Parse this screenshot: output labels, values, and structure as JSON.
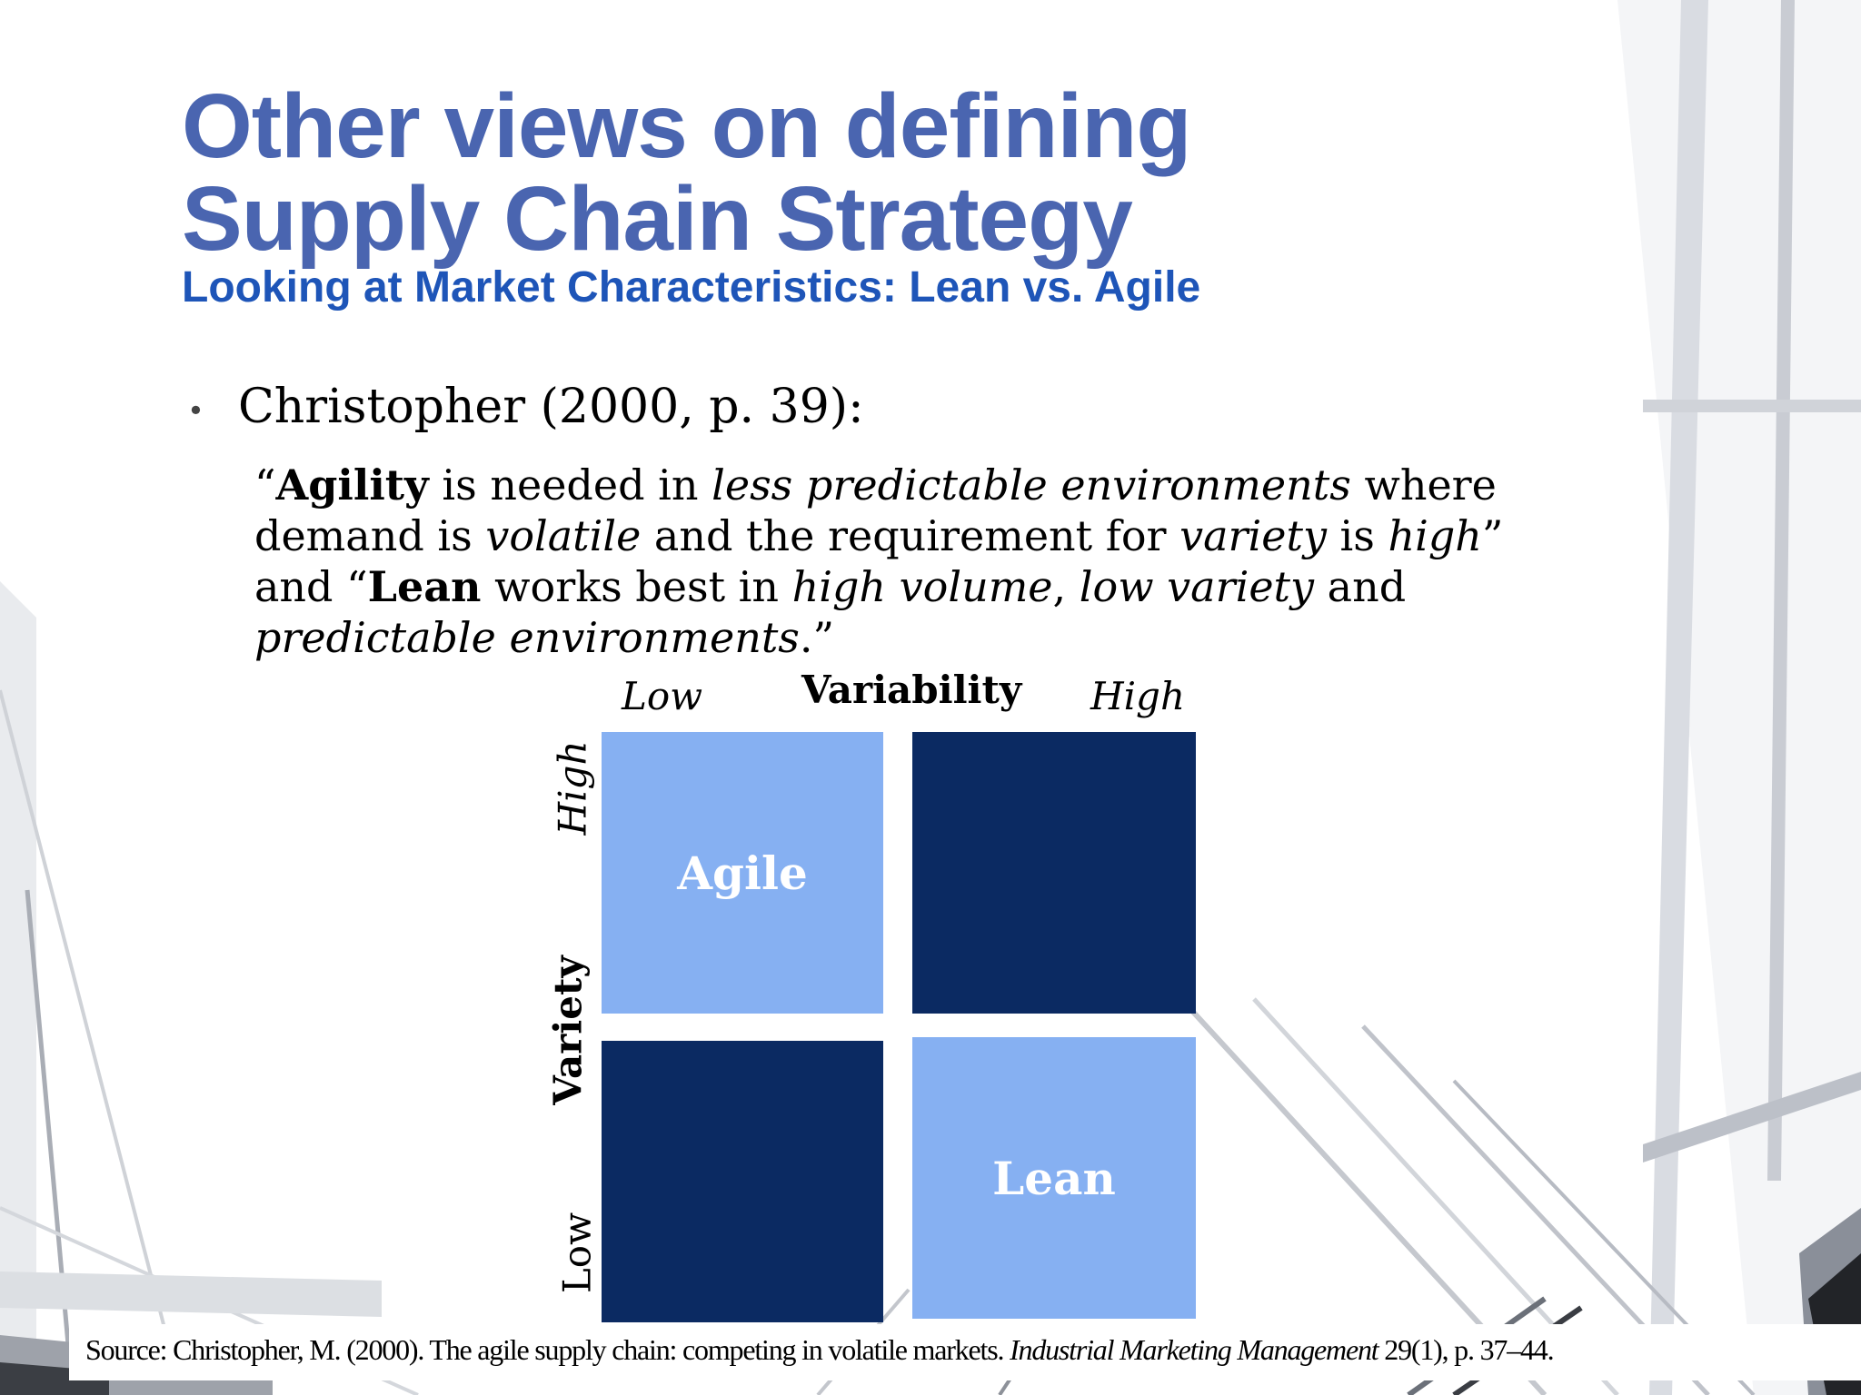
{
  "slide": {
    "title_line1": "Other views on defining",
    "title_line2": "Supply Chain Strategy",
    "subtitle": "Looking at Market Characteristics: Lean vs. Agile",
    "bullet": "Christopher (2000, p. 39):",
    "quote": {
      "l1": [
        {
          "t": "“",
          "s": "n"
        },
        {
          "t": "Agility",
          "s": "b"
        },
        {
          "t": " is needed in ",
          "s": "n"
        },
        {
          "t": "less predictable environments",
          "s": "i"
        },
        {
          "t": " where",
          "s": "n"
        }
      ],
      "l2": [
        {
          "t": "demand is ",
          "s": "n"
        },
        {
          "t": "volatile",
          "s": "i"
        },
        {
          "t": " and the requirement for ",
          "s": "n"
        },
        {
          "t": "variety",
          "s": "i"
        },
        {
          "t": " is ",
          "s": "n"
        },
        {
          "t": "high",
          "s": "i"
        },
        {
          "t": "”",
          "s": "n"
        }
      ],
      "l3": [
        {
          "t": "and “",
          "s": "n"
        },
        {
          "t": "Lean",
          "s": "b"
        },
        {
          "t": " works best in ",
          "s": "n"
        },
        {
          "t": "high volume",
          "s": "i"
        },
        {
          "t": ", ",
          "s": "n"
        },
        {
          "t": "low variety",
          "s": "i"
        },
        {
          "t": " and",
          "s": "n"
        }
      ],
      "l4": [
        {
          "t": "predictable environments",
          "s": "i"
        },
        {
          "t": ".”",
          "s": "n"
        }
      ]
    },
    "matrix": {
      "x_axis_title": "Variability",
      "x_low": "Low",
      "x_high": "High",
      "y_axis_title": "Variety",
      "y_high": "High",
      "y_low": "Low",
      "cells": {
        "top_left": "Agile",
        "top_right": "",
        "bottom_left": "",
        "bottom_right": "Lean"
      },
      "colors": {
        "light": "#86b0f2",
        "dark": "#0b2a62"
      }
    },
    "source": {
      "before": "Source: Christopher, M. (2000). The agile supply chain: competing in volatile markets. ",
      "journal": "Industrial Marketing Management",
      "after": " 29(1), p. 37–44."
    },
    "colors": {
      "title": "#4a65b0",
      "subtitle": "#1e55b8"
    }
  }
}
